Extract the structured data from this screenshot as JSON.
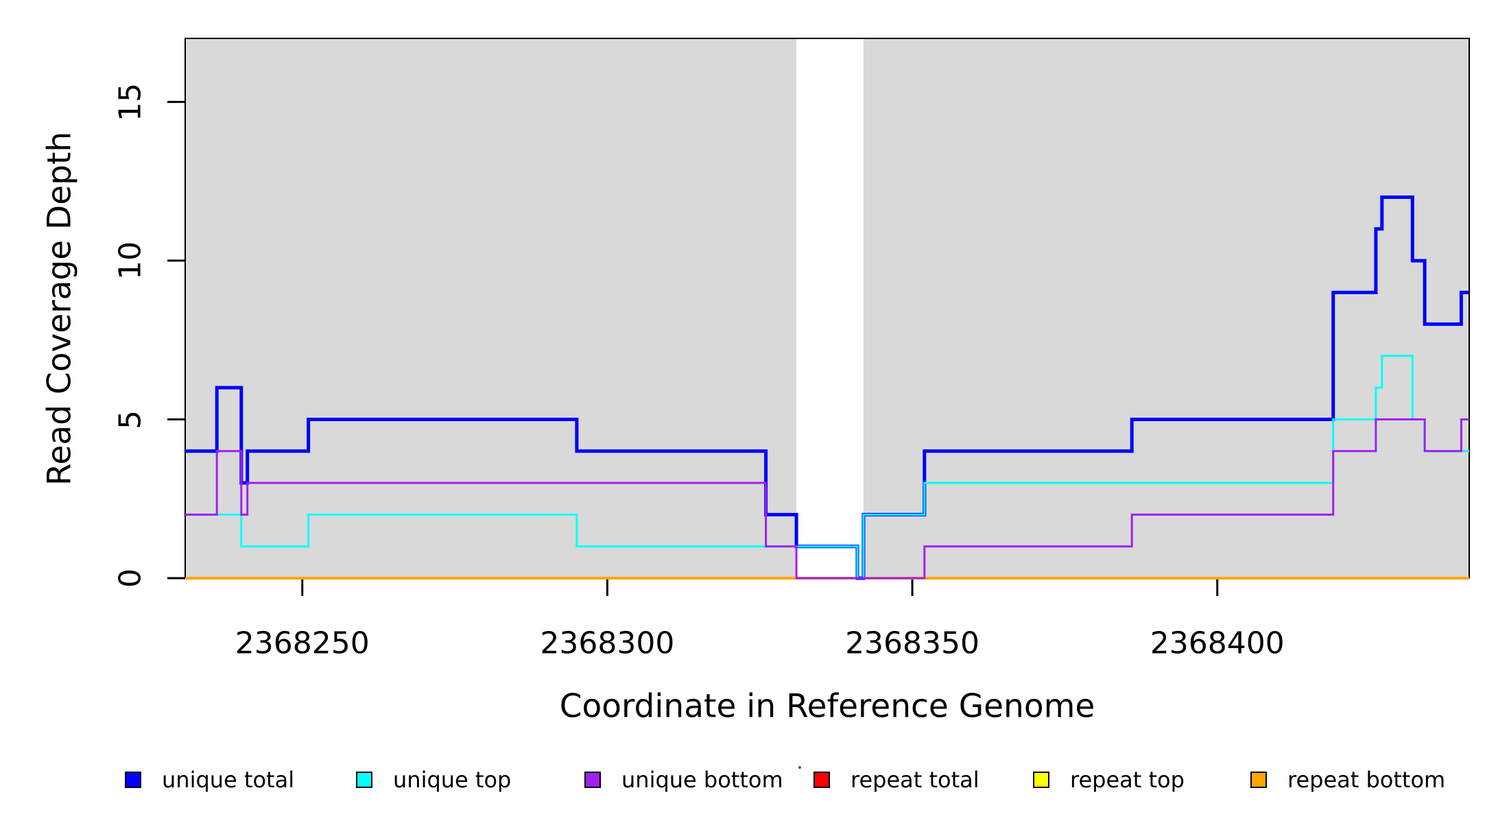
{
  "chart_data": {
    "type": "line",
    "subtype": "step",
    "title": "",
    "xlabel": "Coordinate in Reference Genome",
    "ylabel": "Read Coverage Depth",
    "x_ticks": [
      2368250,
      2368300,
      2368350,
      2368400
    ],
    "x_tick_labels": [
      "2368250",
      "2368300",
      "2368350",
      "2368400"
    ],
    "y_ticks": [
      0,
      5,
      10,
      15
    ],
    "y_tick_labels": [
      "0",
      "5",
      "10",
      "15"
    ],
    "xlim": [
      2368230.8,
      2368441.3
    ],
    "ylim": [
      0,
      17
    ],
    "grid": false,
    "plot_background": "#ffffff",
    "shaded_bands": [
      {
        "x0": 2368230.8,
        "x1": 2368331,
        "color": "#d9d9d9"
      },
      {
        "x0": 2368342,
        "x1": 2368441.3,
        "color": "#d9d9d9"
      }
    ],
    "gap_band": {
      "x0": 2368331,
      "x1": 2368342,
      "color": "#ffffff"
    },
    "legend_position": "bottom",
    "series": [
      {
        "name": "repeat total",
        "color": "#ff0000",
        "line_width": 3,
        "steps": [
          [
            2368230.8,
            0
          ]
        ]
      },
      {
        "name": "repeat top",
        "color": "#ffff00",
        "line_width": 3,
        "steps": [
          [
            2368230.8,
            0
          ]
        ]
      },
      {
        "name": "repeat bottom",
        "color": "#ffa500",
        "line_width": 4,
        "steps": [
          [
            2368230.8,
            0
          ]
        ]
      },
      {
        "name": "unique total",
        "color": "#0000ff",
        "line_width": 5,
        "steps": [
          [
            2368230.8,
            4
          ],
          [
            2368236,
            6
          ],
          [
            2368240,
            3
          ],
          [
            2368241,
            4
          ],
          [
            2368251,
            5
          ],
          [
            2368295,
            4
          ],
          [
            2368326,
            2
          ],
          [
            2368331,
            1
          ],
          [
            2368341,
            0
          ],
          [
            2368342,
            2
          ],
          [
            2368352,
            4
          ],
          [
            2368386,
            5
          ],
          [
            2368419,
            9
          ],
          [
            2368426,
            11
          ],
          [
            2368427,
            12
          ],
          [
            2368432,
            10
          ],
          [
            2368434,
            8
          ],
          [
            2368440,
            9
          ]
        ]
      },
      {
        "name": "unique top",
        "color": "#00ffff",
        "line_width": 3,
        "steps": [
          [
            2368230.8,
            2
          ],
          [
            2368240,
            1
          ],
          [
            2368251,
            2
          ],
          [
            2368295,
            1
          ],
          [
            2368341,
            0
          ],
          [
            2368342,
            2
          ],
          [
            2368352,
            3
          ],
          [
            2368419,
            5
          ],
          [
            2368426,
            6
          ],
          [
            2368427,
            7
          ],
          [
            2368432,
            5
          ],
          [
            2368434,
            4
          ]
        ]
      },
      {
        "name": "unique bottom",
        "color": "#a020f0",
        "line_width": 3,
        "steps": [
          [
            2368230.8,
            2
          ],
          [
            2368236,
            4
          ],
          [
            2368240,
            2
          ],
          [
            2368241,
            3
          ],
          [
            2368326,
            1
          ],
          [
            2368331,
            0
          ],
          [
            2368352,
            1
          ],
          [
            2368386,
            2
          ],
          [
            2368419,
            4
          ],
          [
            2368426,
            5
          ],
          [
            2368434,
            4
          ],
          [
            2368440,
            5
          ]
        ]
      }
    ]
  },
  "legend": {
    "items": [
      {
        "label": "unique total",
        "color": "#0000ff"
      },
      {
        "label": "unique top",
        "color": "#00ffff"
      },
      {
        "label": "unique bottom",
        "color": "#a020f0"
      },
      {
        "label": "repeat total",
        "color": "#ff0000"
      },
      {
        "label": "repeat top",
        "color": "#ffff00"
      },
      {
        "label": "repeat bottom",
        "color": "#ffa500"
      }
    ]
  },
  "axis_color": "#000000"
}
